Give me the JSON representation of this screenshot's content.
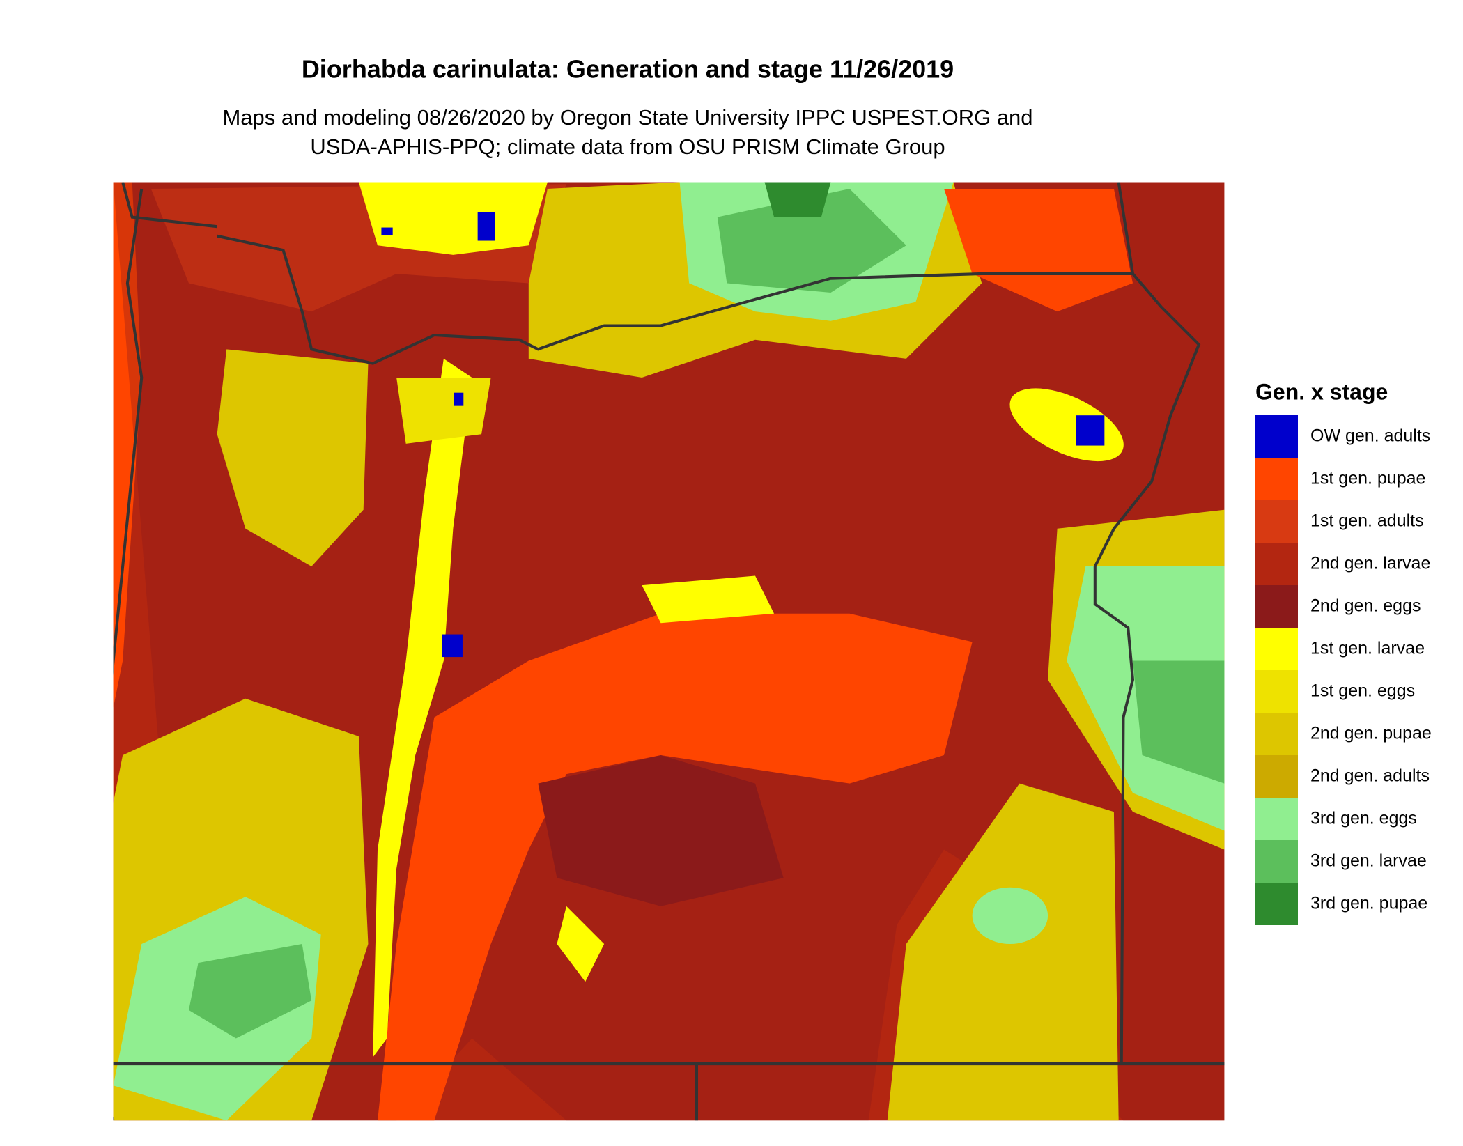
{
  "title": "Diorhabda carinulata: Generation and stage 11/26/2019",
  "subtitle": [
    "Maps and modeling 08/26/2020 by Oregon State University IPPC USPEST.ORG and",
    "USDA-APHIS-PPQ; climate data from OSU PRISM Climate Group"
  ],
  "legend": {
    "title": "Gen. x stage",
    "items": [
      {
        "label": "OW gen. adults",
        "color": "#0000CC"
      },
      {
        "label": "1st gen. pupae",
        "color": "#FF4500"
      },
      {
        "label": "1st gen. adults",
        "color": "#D83A12"
      },
      {
        "label": "2nd gen. larvae",
        "color": "#B32611"
      },
      {
        "label": "2nd gen. eggs",
        "color": "#8B1A1A"
      },
      {
        "label": "1st gen. larvae",
        "color": "#FFFF00"
      },
      {
        "label": "1st gen. eggs",
        "color": "#EEE200"
      },
      {
        "label": "2nd gen. pupae",
        "color": "#DDC600"
      },
      {
        "label": "2nd gen. adults",
        "color": "#CCAA00"
      },
      {
        "label": "3rd gen. eggs",
        "color": "#90EE90"
      },
      {
        "label": "3rd gen. larvae",
        "color": "#5CBF5C"
      },
      {
        "label": "3rd gen. pupae",
        "color": "#2E8B2E"
      }
    ]
  }
}
